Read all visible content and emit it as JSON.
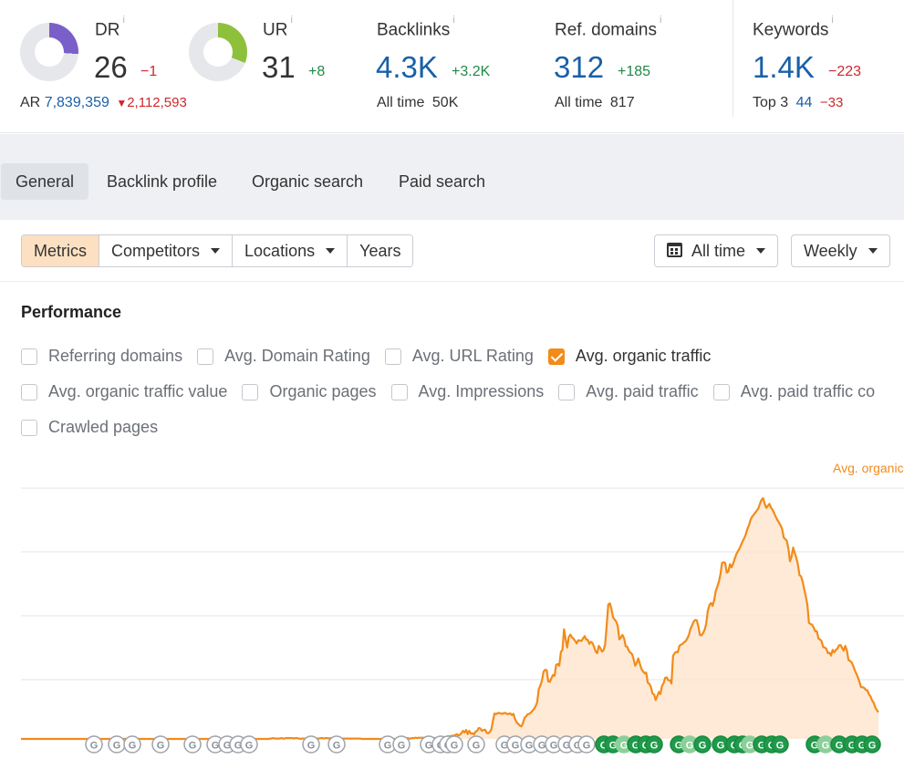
{
  "metrics": {
    "dr": {
      "label": "DR",
      "info": "i",
      "value": "26",
      "delta": "−1",
      "progress": 0.26,
      "color": "#7b5fc9",
      "ar_label": "AR",
      "ar_value": "7,839,359",
      "ar_arrow": "▼",
      "ar_delta": "2,112,593"
    },
    "ur": {
      "label": "UR",
      "info": "i",
      "value": "31",
      "delta": "+8",
      "progress": 0.31,
      "color": "#8ec03c"
    },
    "backlinks": {
      "label": "Backlinks",
      "info": "i",
      "value": "4.3K",
      "delta": "+3.2K",
      "sub_label": "All time",
      "sub_value": "50K"
    },
    "ref_domains": {
      "label": "Ref. domains",
      "info": "i",
      "value": "312",
      "delta": "+185",
      "sub_label": "All time",
      "sub_value": "817"
    },
    "keywords": {
      "label": "Keywords",
      "info": "i",
      "value": "1.4K",
      "delta": "−223",
      "sub_label": "Top 3",
      "sub_value": "44",
      "sub_delta": "−33"
    }
  },
  "tabs": [
    "General",
    "Backlink profile",
    "Organic search",
    "Paid search"
  ],
  "active_tab": "General",
  "controls": {
    "segments": [
      {
        "label": "Metrics",
        "active": true,
        "caret": false
      },
      {
        "label": "Competitors",
        "active": false,
        "caret": true
      },
      {
        "label": "Locations",
        "active": false,
        "caret": true
      },
      {
        "label": "Years",
        "active": false,
        "caret": false
      }
    ],
    "date_range": "All time",
    "interval": "Weekly"
  },
  "performance": {
    "title": "Performance",
    "checkboxes": [
      {
        "label": "Referring domains",
        "checked": false
      },
      {
        "label": "Avg. Domain Rating",
        "checked": false
      },
      {
        "label": "Avg. URL Rating",
        "checked": false
      },
      {
        "label": "Avg. organic traffic",
        "checked": true
      },
      {
        "label": "Avg. organic traffic value",
        "checked": false
      },
      {
        "label": "Organic pages",
        "checked": false
      },
      {
        "label": "Avg. Impressions",
        "checked": false
      },
      {
        "label": "Avg. paid traffic",
        "checked": false
      },
      {
        "label": "Avg. paid traffic co",
        "checked": false
      },
      {
        "label": "Crawled pages",
        "checked": false
      }
    ]
  },
  "chart_data": {
    "type": "area",
    "legend": "Avg. organic",
    "series_color": "#f28b1a",
    "x_start": "2015",
    "x_end": "2025",
    "values": [
      0,
      0,
      0,
      0,
      0,
      0,
      0,
      0,
      0,
      0,
      0,
      0,
      0,
      0,
      0,
      0,
      0,
      0,
      0,
      0,
      0,
      0,
      0,
      0,
      0,
      0,
      0,
      0,
      0,
      0,
      0,
      0,
      0,
      0,
      0,
      0,
      0,
      0,
      0,
      2,
      2,
      3,
      2,
      2,
      2,
      2,
      2,
      0,
      0,
      0,
      0,
      0,
      0,
      0,
      0,
      0,
      0,
      0,
      0,
      1,
      1,
      2,
      1,
      1,
      1,
      1,
      2,
      1,
      1,
      2,
      2,
      2,
      2,
      2,
      1,
      2,
      2,
      1,
      0,
      1,
      1,
      1,
      1,
      0,
      1,
      1,
      1,
      2,
      1,
      1,
      1,
      2,
      2,
      1,
      2,
      2,
      1,
      2,
      1,
      1,
      1,
      1,
      1,
      1,
      1,
      1,
      1,
      1,
      1,
      1,
      1,
      1,
      1,
      1,
      1,
      1,
      1,
      0,
      0,
      0,
      0,
      0,
      0,
      0,
      0,
      0,
      0,
      0,
      0,
      0,
      0,
      0,
      0,
      0,
      0,
      0,
      0,
      0,
      0,
      0,
      0,
      0,
      0,
      0,
      1,
      1,
      2,
      1,
      1,
      2,
      2,
      3,
      2,
      3,
      3,
      3,
      3,
      3,
      2,
      3,
      2,
      3,
      3,
      2,
      2,
      3,
      3,
      2,
      4,
      4,
      5,
      6,
      7,
      6,
      8,
      8,
      9,
      12,
      9,
      10,
      14,
      20,
      16,
      22,
      12,
      20,
      13,
      14,
      11,
      18,
      20,
      27,
      26,
      20,
      22,
      23,
      15,
      14,
      17,
      24,
      45,
      63,
      61,
      64,
      64,
      63,
      62,
      64,
      64,
      61,
      62,
      63,
      59,
      62,
      49,
      41,
      37,
      33,
      31,
      39,
      52,
      56,
      61,
      62,
      65,
      70,
      74,
      81,
      91,
      123,
      132,
      144,
      166,
      171,
      170,
      142,
      141,
      150,
      158,
      156,
      183,
      185,
      181,
      215,
      220,
      271,
      246,
      226,
      252,
      258,
      251,
      248,
      242,
      236,
      244,
      243,
      242,
      248,
      254,
      246,
      245,
      235,
      240,
      237,
      228,
      216,
      212,
      230,
      224,
      216,
      219,
      234,
      281,
      332,
      335,
      321,
      301,
      295,
      290,
      279,
      246,
      251,
      257,
      248,
      229,
      228,
      218,
      213,
      210,
      198,
      181,
      188,
      199,
      185,
      173,
      167,
      162,
      164,
      139,
      136,
      128,
      112,
      110,
      96,
      106,
      116,
      111,
      131,
      138,
      151,
      152,
      145,
      145,
      137,
      205,
      212,
      215,
      214,
      230,
      233,
      235,
      239,
      242,
      248,
      257,
      272,
      280,
      290,
      294,
      293,
      278,
      257,
      256,
      262,
      270,
      285,
      316,
      331,
      336,
      329,
      343,
      365,
      376,
      389,
      407,
      435,
      437,
      435,
      411,
      414,
      432,
      424,
      433,
      445,
      456,
      464,
      470,
      479,
      488,
      496,
      505,
      518,
      528,
      541,
      549,
      554,
      559,
      564,
      570,
      581,
      591,
      595,
      581,
      571,
      576,
      581,
      572,
      566,
      558,
      549,
      541,
      535,
      528,
      520,
      498,
      494,
      490,
      470,
      439,
      450,
      473,
      460,
      448,
      431,
      405,
      402,
      389,
      370,
      353,
      331,
      287,
      284,
      282,
      275,
      266,
      266,
      248,
      246,
      242,
      227,
      226,
      223,
      212,
      213,
      206,
      220,
      214,
      220,
      223,
      231,
      232,
      225,
      218,
      230,
      219,
      195,
      193,
      189,
      181,
      170,
      161,
      152,
      141,
      128,
      128,
      126,
      121,
      120,
      110,
      105,
      95,
      89,
      78,
      71,
      66
    ]
  }
}
